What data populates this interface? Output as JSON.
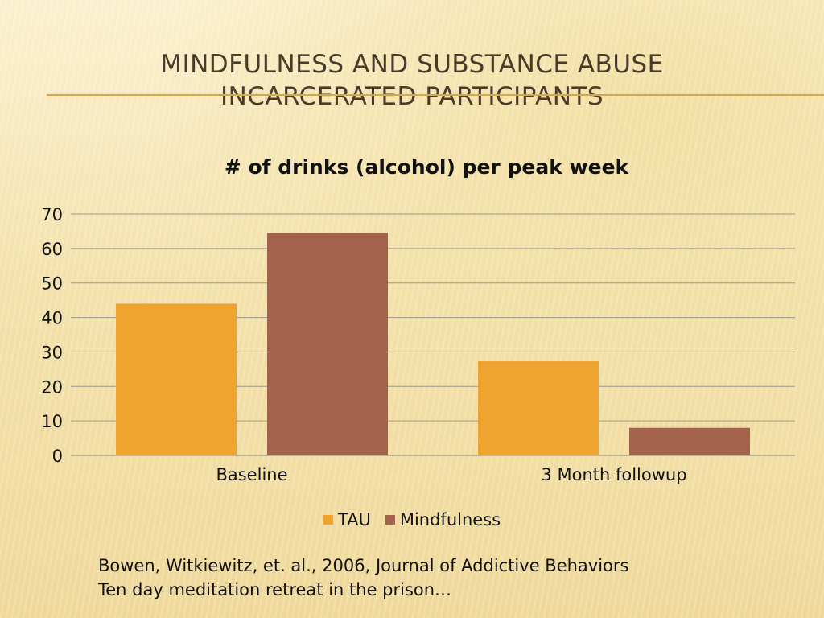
{
  "slide": {
    "title_line1": "MINDFULNESS AND SUBSTANCE ABUSE",
    "title_line2": "INCARCERATED PARTICIPANTS",
    "citation_line1": "Bowen, Witkiewitz, et. al., 2006, Journal of Addictive Behaviors",
    "citation_line2": "Ten day meditation retreat in the prison…"
  },
  "chart_data": {
    "type": "bar",
    "title": "# of drinks (alcohol) per peak week",
    "categories": [
      "Baseline",
      "3 Month followup"
    ],
    "series": [
      {
        "name": "TAU",
        "values": [
          44,
          27.5
        ],
        "color": "#efa430"
      },
      {
        "name": "Mindfulness",
        "values": [
          64.5,
          8
        ],
        "color": "#a3624c"
      }
    ],
    "ylim": [
      0,
      70
    ],
    "yticks": [
      0,
      10,
      20,
      30,
      40,
      50,
      60,
      70
    ],
    "grid": true,
    "legend_position": "bottom"
  }
}
